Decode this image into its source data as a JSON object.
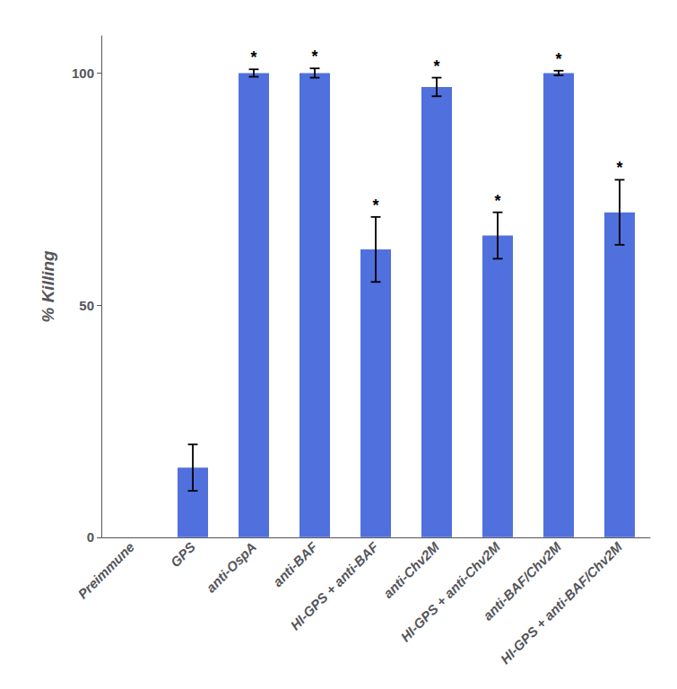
{
  "chart_data": {
    "type": "bar",
    "categories": [
      "Preimmune",
      "GPS",
      "anti-OspA",
      "anti-BAF",
      "HI-GPS + anti-BAF",
      "anti-Chv2M",
      "HI-GPS + anti-Chv2M",
      "anti-BAF/Chv2M",
      "HI-GPS + anti-BAF/Chv2M"
    ],
    "values": [
      0,
      15,
      100,
      100,
      62,
      97,
      65,
      100,
      70
    ],
    "errors": [
      0,
      5,
      0.8,
      1.0,
      7,
      2,
      5,
      0.5,
      7
    ],
    "ylabel": "% Killing",
    "ylim": [
      0,
      108
    ],
    "yticks": [
      0,
      50,
      100
    ],
    "grid": false,
    "annotations": [
      {
        "category": "anti-OspA",
        "text": "*"
      },
      {
        "category": "anti-BAF",
        "text": "*"
      },
      {
        "category": "HI-GPS + anti-BAF",
        "text": "*"
      },
      {
        "category": "anti-Chv2M",
        "text": "*"
      },
      {
        "category": "HI-GPS + anti-Chv2M",
        "text": "*"
      },
      {
        "category": "anti-BAF/Chv2M",
        "text": "*"
      },
      {
        "category": "HI-GPS + anti-BAF/Chv2M",
        "text": "*"
      }
    ]
  }
}
